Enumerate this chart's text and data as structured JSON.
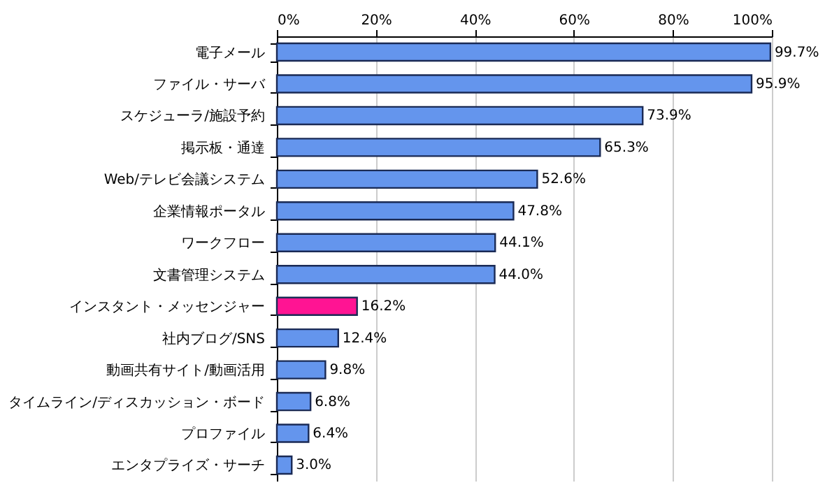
{
  "chart_data": {
    "type": "bar",
    "orientation": "horizontal",
    "categories": [
      "電子メール",
      "ファイル・サーバ",
      "スケジューラ/施設予約",
      "掲示板・通達",
      "Web/テレビ会議システム",
      "企業情報ポータル",
      "ワークフロー",
      "文書管理システム",
      "インスタント・メッセンジャー",
      "社内ブログ/SNS",
      "動画共有サイト/動画活用",
      "タイムライン/ディスカッション・ボード",
      "プロファイル",
      "エンタプライズ・サーチ"
    ],
    "values": [
      99.7,
      95.9,
      73.9,
      65.3,
      52.6,
      47.8,
      44.1,
      44.0,
      16.2,
      12.4,
      9.8,
      6.8,
      6.4,
      3.0
    ],
    "value_labels": [
      "99.7%",
      "95.9%",
      "73.9%",
      "65.3%",
      "52.6%",
      "47.8%",
      "44.1%",
      "44.0%",
      "16.2%",
      "12.4%",
      "9.8%",
      "6.8%",
      "6.4%",
      "3.0%"
    ],
    "colors": [
      "#6495ed",
      "#6495ed",
      "#6495ed",
      "#6495ed",
      "#6495ed",
      "#6495ed",
      "#6495ed",
      "#6495ed",
      "#ff1493",
      "#6495ed",
      "#6495ed",
      "#6495ed",
      "#6495ed",
      "#6495ed"
    ],
    "xlim": [
      0,
      100
    ],
    "xticks": [
      {
        "value": 0,
        "label": "0%"
      },
      {
        "value": 20,
        "label": "20%"
      },
      {
        "value": 40,
        "label": "40%"
      },
      {
        "value": 60,
        "label": "60%"
      },
      {
        "value": 80,
        "label": "80%"
      },
      {
        "value": 100,
        "label": "100%"
      }
    ],
    "grid": "x"
  }
}
